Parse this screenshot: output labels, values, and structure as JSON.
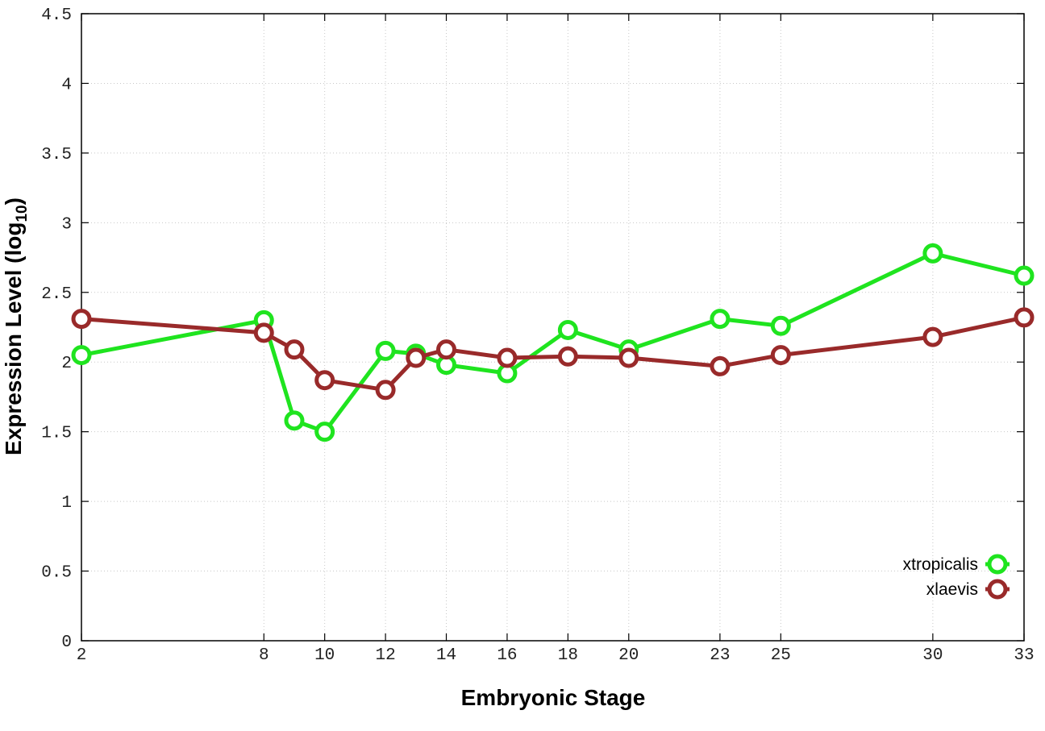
{
  "chart_data": {
    "type": "line",
    "xlabel": "Embryonic Stage",
    "ylabel_main": "Expression Level (log",
    "ylabel_sub": "10",
    "ylabel_close": ")",
    "x_ticks": [
      "2",
      "8",
      "10",
      "12",
      "14",
      "16",
      "18",
      "20",
      "23",
      "25",
      "30",
      "33"
    ],
    "y_ticks": [
      "0",
      "0.5",
      "1",
      "1.5",
      "2",
      "2.5",
      "3",
      "3.5",
      "4",
      "4.5"
    ],
    "xlim": [
      2,
      33
    ],
    "ylim": [
      0,
      4.5
    ],
    "grid": true,
    "legend_position": "bottom-right",
    "x": [
      2,
      8,
      9,
      10,
      12,
      13,
      14,
      16,
      18,
      20,
      23,
      25,
      30,
      33
    ],
    "series": [
      {
        "name": "xtropicalis",
        "color": "#1fe41f",
        "values": [
          2.05,
          2.3,
          1.58,
          1.5,
          2.08,
          2.06,
          1.98,
          1.92,
          2.23,
          2.09,
          2.31,
          2.26,
          2.78,
          2.62
        ]
      },
      {
        "name": "xlaevis",
        "color": "#992a2a",
        "values": [
          2.31,
          2.21,
          2.09,
          1.87,
          1.8,
          2.03,
          2.09,
          2.03,
          2.04,
          2.03,
          1.97,
          2.05,
          2.18,
          2.32
        ]
      }
    ]
  }
}
